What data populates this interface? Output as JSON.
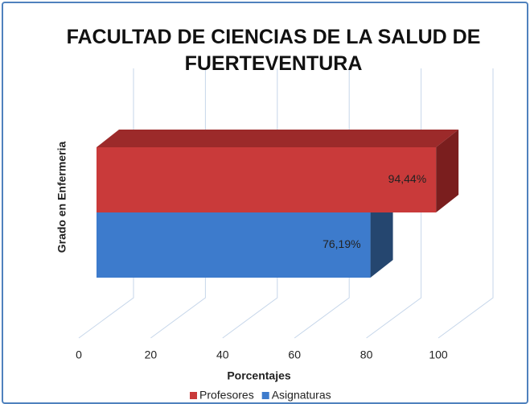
{
  "chart_data": {
    "type": "bar3d_horizontal",
    "title": "FACULTAD DE CIENCIAS DE LA SALUD DE FUERTEVENTURA",
    "categories": [
      "Grado en Enfermeria"
    ],
    "series": [
      {
        "name": "Profesores",
        "color": "#c93a3a",
        "values": [
          94.44
        ],
        "value_labels": [
          "94,44%"
        ]
      },
      {
        "name": "Asignaturas",
        "color": "#3d7bcc",
        "values": [
          76.19
        ],
        "value_labels": [
          "76,19%"
        ]
      }
    ],
    "x_label": "Porcentajes",
    "xlim": [
      0,
      100
    ],
    "xticks": [
      0,
      20,
      40,
      60,
      80,
      100
    ],
    "grid": true,
    "legend": "bottom"
  }
}
